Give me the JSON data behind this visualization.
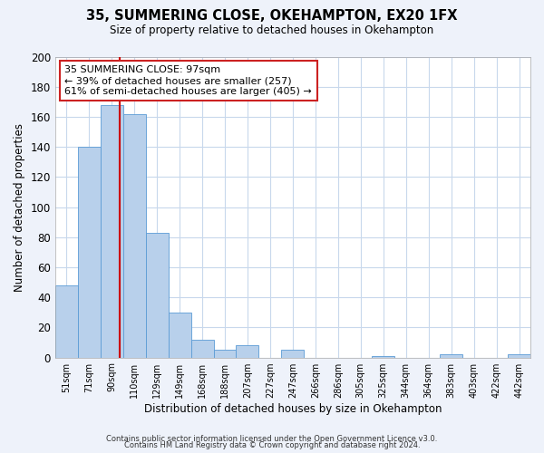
{
  "title": "35, SUMMERING CLOSE, OKEHAMPTON, EX20 1FX",
  "subtitle": "Size of property relative to detached houses in Okehampton",
  "xlabel": "Distribution of detached houses by size in Okehampton",
  "ylabel": "Number of detached properties",
  "bar_labels": [
    "51sqm",
    "71sqm",
    "90sqm",
    "110sqm",
    "129sqm",
    "149sqm",
    "168sqm",
    "188sqm",
    "207sqm",
    "227sqm",
    "247sqm",
    "266sqm",
    "286sqm",
    "305sqm",
    "325sqm",
    "344sqm",
    "364sqm",
    "383sqm",
    "403sqm",
    "422sqm",
    "442sqm"
  ],
  "bar_values": [
    48,
    140,
    168,
    162,
    83,
    30,
    12,
    5,
    8,
    0,
    5,
    0,
    0,
    0,
    1,
    0,
    0,
    2,
    0,
    0,
    2
  ],
  "bar_color": "#b8d0eb",
  "bar_edge_color": "#5b9bd5",
  "vline_color": "#cc0000",
  "ylim": [
    0,
    200
  ],
  "yticks": [
    0,
    20,
    40,
    60,
    80,
    100,
    120,
    140,
    160,
    180,
    200
  ],
  "annotation_box_text": "35 SUMMERING CLOSE: 97sqm\n← 39% of detached houses are smaller (257)\n61% of semi-detached houses are larger (405) →",
  "footer_line1": "Contains HM Land Registry data © Crown copyright and database right 2024.",
  "footer_line2": "Contains public sector information licensed under the Open Government Licence v3.0.",
  "background_color": "#eef2fa",
  "plot_bg_color": "#ffffff",
  "grid_color": "#c8d8ec"
}
